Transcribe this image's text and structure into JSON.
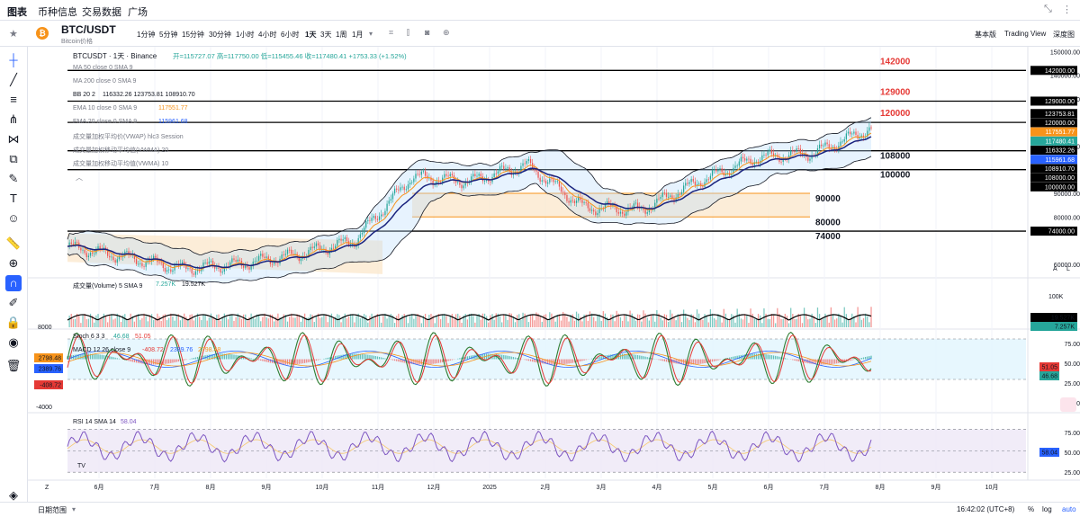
{
  "topnav": {
    "tabs": [
      "图表",
      "币种信息",
      "交易数据",
      "广场"
    ]
  },
  "symbol": {
    "pair": "BTC/USDT",
    "subtitle": "Bitcoin价格"
  },
  "toolbar": {
    "timeframes": [
      "1分钟",
      "5分钟",
      "15分钟",
      "30分钟",
      "1小时",
      "4小时",
      "6小时",
      "1天",
      "3天",
      "1周",
      "1月"
    ],
    "active_timeframe": "1天",
    "views": [
      "基本版",
      "Trading View",
      "深度图"
    ]
  },
  "legend": {
    "main": "BTCUSDT · 1天 · Binance",
    "ohlc": "开=115727.07 高=117750.00 低=115455.46 收=117480.41 +1753.33 (+1.52%)",
    "ma50": "MA 50 close 0 SMA 9",
    "ma200": "MA 200 close 0 SMA 9",
    "bb_label": "BB 20 2",
    "bb_values": "116332.26  123753.81  108910.70",
    "ema10_label": "EMA 10 close 0 SMA 9",
    "ema10_value": "117551.77",
    "ema20_label": "EMA 20 close 0 SMA 9",
    "ema20_value": "115961.68",
    "vwap": "成交量加权平均价(VWAP) hlc3 Session",
    "vwma20": "成交量加权移动平均值(VWMA) 20",
    "vwma10": "成交量加权移动平均值(VWMA) 10",
    "volume_label": "成交量(Volume) 5 SMA 9",
    "volume_v1": "7.257K",
    "volume_v2": "19.527K",
    "stoch_label": "Stoch 6 3 3",
    "stoch_v1": "46.68",
    "stoch_v2": "51.05",
    "macd_label": "MACD 12 26 close 9",
    "macd_v1": "-408.72",
    "macd_v2": "2389.76",
    "macd_v3": "2798.48",
    "rsi_label": "RSI 14 SMA 14",
    "rsi_value": "58.04"
  },
  "price_axis": {
    "ticks": [
      "150000.00",
      "140000.00",
      "130000.00",
      "110000.00",
      "90000.00",
      "80000.00",
      "60000.00"
    ],
    "boxes": [
      {
        "text": "142000.00",
        "bg": "#000000",
        "fg": "#ffffff",
        "price": 142000
      },
      {
        "text": "129000.00",
        "bg": "#000000",
        "fg": "#ffffff",
        "price": 129000
      },
      {
        "text": "123753.81",
        "bg": "#000000",
        "fg": "#ffffff",
        "price": 123753.81
      },
      {
        "text": "120000.00",
        "bg": "#000000",
        "fg": "#ffffff",
        "price": 120000
      },
      {
        "text": "117551.77",
        "bg": "#f7931a",
        "fg": "#ffffff",
        "price": 117551.77
      },
      {
        "text": "117480.41",
        "bg": "#26a69a",
        "fg": "#ffffff",
        "price": 117480.41
      },
      {
        "text": "116332.26",
        "bg": "#000000",
        "fg": "#ffffff",
        "price": 116332.26
      },
      {
        "text": "115961.68",
        "bg": "#2962ff",
        "fg": "#ffffff",
        "price": 115961.68
      },
      {
        "text": "108910.70",
        "bg": "#000000",
        "fg": "#ffffff",
        "price": 108910.7
      },
      {
        "text": "108000.00",
        "bg": "#000000",
        "fg": "#ffffff",
        "price": 108000
      },
      {
        "text": "100000.00",
        "bg": "#000000",
        "fg": "#ffffff",
        "price": 100000
      },
      {
        "text": "74000.00",
        "bg": "#000000",
        "fg": "#ffffff",
        "price": 74000
      }
    ]
  },
  "horizontal_levels": [
    {
      "price": 142000,
      "label": "142000",
      "label_color": "#e53935"
    },
    {
      "price": 129000,
      "label": "129000",
      "label_color": "#e53935"
    },
    {
      "price": 120000,
      "label": "120000",
      "label_color": "#e53935"
    },
    {
      "price": 108000,
      "label": "108000",
      "label_color": "#131722"
    },
    {
      "price": 100000,
      "label": "100000",
      "label_color": "#131722"
    },
    {
      "price": 90000,
      "label": "90000",
      "label_color": "#131722"
    },
    {
      "price": 80000,
      "label": "80000",
      "label_color": "#131722"
    },
    {
      "price": 74000,
      "label": "74000",
      "label_color": "#131722"
    }
  ],
  "volume_axis": {
    "ticks": [
      "100K"
    ],
    "boxes": [
      {
        "text": "19.527K",
        "bg": "#000000"
      },
      {
        "text": "7.257K",
        "bg": "#26a69a"
      }
    ]
  },
  "macd_axis": {
    "left_ticks": [
      "8000",
      "-4000"
    ],
    "boxes": [
      {
        "text": "2798.48",
        "bg": "#f7931a"
      },
      {
        "text": "2389.76",
        "bg": "#2962ff"
      },
      {
        "text": "-408.72",
        "bg": "#e53935"
      }
    ]
  },
  "stoch_axis": {
    "ticks": [
      "75.00",
      "50.00",
      "25.00",
      "0.00"
    ],
    "boxes": [
      {
        "text": "51.05",
        "bg": "#e53935"
      },
      {
        "text": "46.68",
        "bg": "#26a69a"
      }
    ]
  },
  "rsi_axis": {
    "ticks": [
      "75.00",
      "50.00",
      "25.00"
    ],
    "boxes": [
      {
        "text": "58.04",
        "bg": "#2962ff"
      }
    ]
  },
  "time_axis": {
    "labels": [
      "6月",
      "7月",
      "8月",
      "9月",
      "10月",
      "11月",
      "12月",
      "2025",
      "2月",
      "3月",
      "4月",
      "5月",
      "6月",
      "7月",
      "8月",
      "9月",
      "10月"
    ]
  },
  "bottom": {
    "range_label": "日期范围",
    "time": "16:42:02 (UTC+8)",
    "pct": "%",
    "log": "log",
    "auto": "auto"
  },
  "chart_data": {
    "type": "candlestick",
    "symbol": "BTCUSDT",
    "interval": "1天",
    "y_range": [
      55000,
      152000
    ],
    "last": {
      "open": 115727.07,
      "high": 117750.0,
      "low": 115455.46,
      "close": 117480.41,
      "change": 1753.33,
      "change_pct": 1.52
    },
    "monthly_closes": [
      {
        "x": "6月",
        "close": 67500
      },
      {
        "x": "7月",
        "close": 63000
      },
      {
        "x": "8月",
        "close": 58000
      },
      {
        "x": "9月",
        "close": 60000
      },
      {
        "x": "10月",
        "close": 64000
      },
      {
        "x": "11月",
        "close": 70000
      },
      {
        "x": "12月",
        "close": 97000
      },
      {
        "x": "2025",
        "close": 95000
      },
      {
        "x": "2月",
        "close": 102000
      },
      {
        "x": "3月",
        "close": 84000
      },
      {
        "x": "4月",
        "close": 83000
      },
      {
        "x": "5月",
        "close": 95000
      },
      {
        "x": "6月",
        "close": 105000
      },
      {
        "x": "7月",
        "close": 107000
      },
      {
        "x": "8月",
        "close": 117480
      }
    ],
    "indicators": {
      "bb": {
        "basis": 116332.26,
        "upper": 123753.81,
        "lower": 108910.7
      },
      "ema10": 117551.77,
      "ema20": 115961.68,
      "stoch": [
        46.68,
        51.05
      ],
      "macd": {
        "hist": -408.72,
        "macd": 2389.76,
        "signal": 2798.48
      },
      "rsi": 58.04,
      "volume": [
        7257,
        19527
      ]
    }
  }
}
